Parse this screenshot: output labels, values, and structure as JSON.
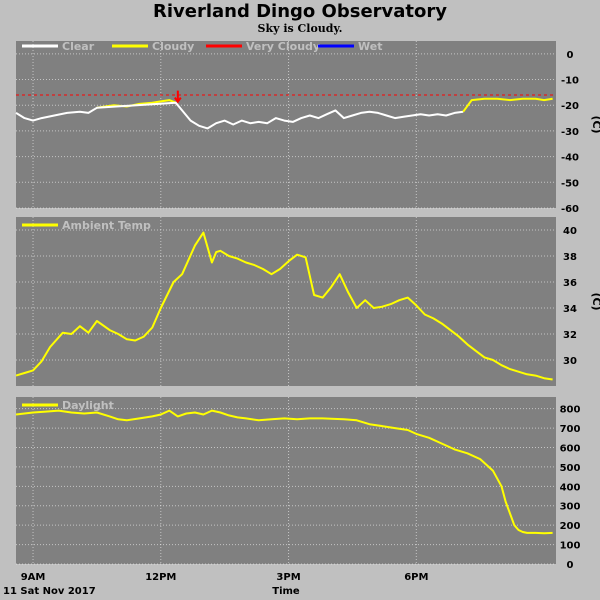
{
  "header": {
    "title": "Riverland Dingo Observatory",
    "subtitle": "Sky is Cloudy."
  },
  "colors": {
    "plot_bg": "#808080",
    "frame": "#c0c0c0",
    "clear": "#ffffff",
    "cloudy": "#ffff00",
    "very_cloudy": "#ff0000",
    "wet": "#0000ff",
    "legend_text": "#c0c0c0"
  },
  "footer": {
    "date": "11 Sat Nov 2017",
    "xlabel": "Time"
  },
  "chart_data": [
    {
      "type": "line",
      "legend": [
        "Clear",
        "Cloudy",
        "Very Cloudy",
        "Wet"
      ],
      "legend_colors": [
        "#ffffff",
        "#ffff00",
        "#ff0000",
        "#0000ff"
      ],
      "ylabel": "(C)",
      "ylim": [
        -60,
        5
      ],
      "yticks": [
        0,
        -10,
        -20,
        -30,
        -40,
        -50,
        -60
      ],
      "x_ticks": [
        "9AM",
        "12PM",
        "3PM",
        "6PM"
      ],
      "threshold": -16,
      "current_marker_time": 12.4,
      "series": [
        {
          "color": "#ffff00",
          "x": [
            10.5,
            10.9,
            11.2,
            11.5,
            11.8,
            12.0,
            12.2,
            12.35
          ],
          "y": [
            -21,
            -20,
            -20.5,
            -19.5,
            -19,
            -18.5,
            -18,
            -19
          ]
        },
        {
          "color": "#ffffff",
          "x": [
            8.6,
            8.8,
            9.0,
            9.2,
            9.5,
            9.8,
            10.1,
            10.3,
            10.5,
            12.35,
            12.5,
            12.7,
            12.9,
            13.1,
            13.3,
            13.5,
            13.7,
            13.9,
            14.1,
            14.3,
            14.5,
            14.7,
            14.9,
            15.1,
            15.3,
            15.5,
            15.7,
            15.9,
            16.1,
            16.3,
            16.5,
            16.7,
            16.9,
            17.1,
            17.3,
            17.5,
            17.7,
            17.9,
            18.1,
            18.3,
            18.5,
            18.7,
            18.9,
            19.1
          ],
          "y": [
            -23,
            -25,
            -26,
            -25,
            -24,
            -23,
            -22.5,
            -23,
            -21,
            -19,
            -22,
            -26,
            -28,
            -29,
            -27,
            -26,
            -27.5,
            -26,
            -27,
            -26.5,
            -27,
            -25,
            -26,
            -26.5,
            -25,
            -24,
            -25,
            -23.5,
            -22,
            -25,
            -24,
            -23,
            -22.5,
            -23,
            -24,
            -25,
            -24.5,
            -24,
            -23.5,
            -24,
            -23.5,
            -24,
            -23,
            -22.5
          ]
        },
        {
          "color": "#ffff00",
          "x": [
            19.1,
            19.3,
            19.6,
            19.9,
            20.2,
            20.5,
            20.8,
            21.0,
            21.2
          ],
          "y": [
            -22.5,
            -18,
            -17.5,
            -17.5,
            -18,
            -17.5,
            -17.5,
            -18,
            -17.5
          ]
        }
      ]
    },
    {
      "type": "line",
      "legend": [
        "Ambient Temp"
      ],
      "legend_colors": [
        "#ffff00"
      ],
      "ylabel": "(C)",
      "ylim": [
        28,
        41
      ],
      "yticks": [
        40,
        38,
        36,
        34,
        32,
        30
      ],
      "x_ticks": [
        "9AM",
        "12PM",
        "3PM",
        "6PM"
      ],
      "series": [
        {
          "color": "#ffff00",
          "x": [
            8.6,
            8.8,
            9.0,
            9.2,
            9.4,
            9.7,
            9.9,
            10.1,
            10.3,
            10.5,
            10.8,
            11.0,
            11.2,
            11.4,
            11.6,
            11.8,
            12.0,
            12.3,
            12.5,
            12.8,
            13.0,
            13.2,
            13.3,
            13.4,
            13.6,
            13.8,
            14.0,
            14.2,
            14.4,
            14.6,
            14.8,
            15.0,
            15.2,
            15.4,
            15.6,
            15.8,
            16.0,
            16.2,
            16.4,
            16.6,
            16.8,
            17.0,
            17.2,
            17.4,
            17.6,
            17.8,
            18.0,
            18.2,
            18.4,
            18.6,
            18.8,
            19.0,
            19.2,
            19.4,
            19.6,
            19.8,
            20.0,
            20.2,
            20.4,
            20.6,
            20.8,
            21.0,
            21.2
          ],
          "y": [
            28.8,
            29.0,
            29.2,
            29.9,
            31.0,
            32.1,
            32.0,
            32.6,
            32.1,
            33.0,
            32.3,
            32.0,
            31.6,
            31.5,
            31.8,
            32.5,
            34.0,
            36.0,
            36.6,
            38.8,
            39.8,
            37.5,
            38.3,
            38.4,
            38.0,
            37.8,
            37.5,
            37.3,
            37.0,
            36.6,
            37.0,
            37.6,
            38.1,
            37.9,
            35.0,
            34.8,
            35.6,
            36.6,
            35.2,
            34.0,
            34.6,
            34.0,
            34.1,
            34.3,
            34.6,
            34.8,
            34.2,
            33.5,
            33.2,
            32.8,
            32.3,
            31.8,
            31.2,
            30.7,
            30.2,
            30.0,
            29.6,
            29.3,
            29.1,
            28.9,
            28.8,
            28.6,
            28.5
          ]
        }
      ]
    },
    {
      "type": "line",
      "legend": [
        "Daylight"
      ],
      "legend_colors": [
        "#ffff00"
      ],
      "ylim": [
        0,
        860
      ],
      "yticks": [
        800,
        700,
        600,
        500,
        400,
        300,
        200,
        100,
        0
      ],
      "x_ticks": [
        "9AM",
        "12PM",
        "3PM",
        "6PM"
      ],
      "series": [
        {
          "color": "#ffff00",
          "x": [
            8.6,
            8.8,
            9.0,
            9.3,
            9.6,
            9.9,
            10.2,
            10.5,
            10.8,
            11.0,
            11.2,
            11.5,
            11.8,
            12.0,
            12.2,
            12.4,
            12.6,
            12.8,
            13.0,
            13.2,
            13.4,
            13.6,
            13.8,
            14.0,
            14.3,
            14.6,
            14.9,
            15.2,
            15.5,
            15.8,
            16.0,
            16.3,
            16.6,
            16.9,
            17.2,
            17.5,
            17.8,
            18.0,
            18.3,
            18.6,
            18.9,
            19.2,
            19.5,
            19.8,
            20.0,
            20.1,
            20.2,
            20.3,
            20.4,
            20.5,
            20.6,
            20.8,
            21.0,
            21.2
          ],
          "y": [
            770,
            775,
            780,
            785,
            790,
            780,
            775,
            780,
            760,
            745,
            740,
            750,
            760,
            770,
            790,
            760,
            775,
            780,
            770,
            790,
            780,
            765,
            755,
            750,
            740,
            745,
            750,
            745,
            750,
            750,
            748,
            745,
            740,
            720,
            710,
            700,
            690,
            670,
            650,
            620,
            590,
            570,
            540,
            480,
            400,
            320,
            260,
            200,
            175,
            165,
            160,
            160,
            158,
            160
          ]
        }
      ]
    }
  ]
}
